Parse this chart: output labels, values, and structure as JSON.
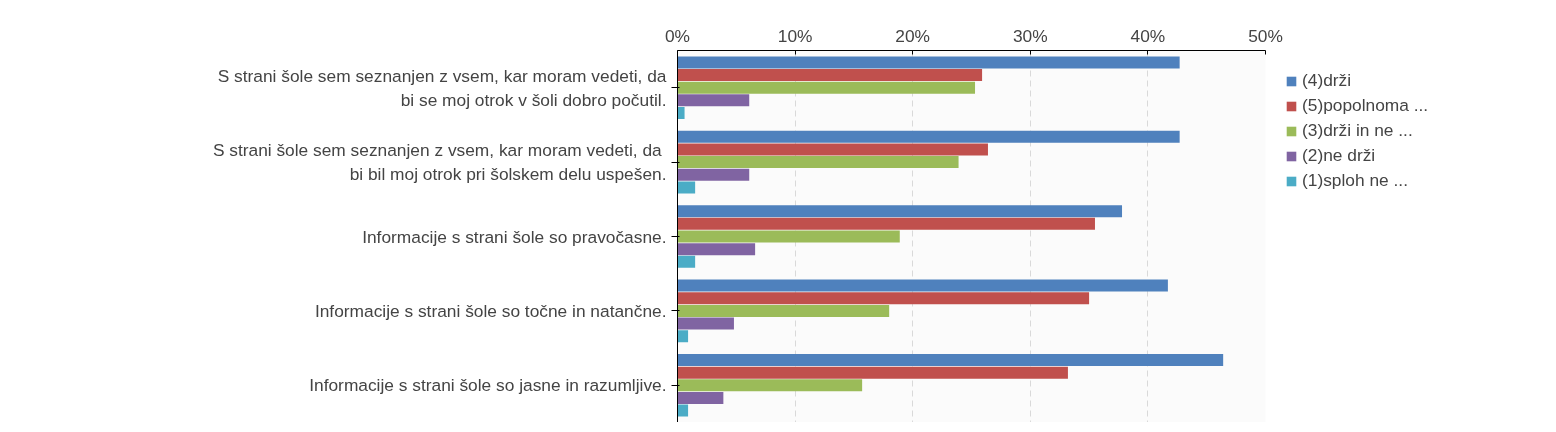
{
  "chart_data": {
    "type": "bar",
    "orientation": "horizontal",
    "categories": [
      "S strani šole sem seznanjen z vsem, kar moram vedeti, da bi se moj otrok v šoli dobro počutil.",
      "S strani šole sem seznanjen  z vsem, kar moram vedeti, da bi bil moj otrok pri šolskem delu uspešen.",
      "Informacije s strani šole so pravočasne.",
      "Informacije s strani šole so točne in natančne.",
      "Informacije s strani šole so jasne in razumljive."
    ],
    "series": [
      {
        "name": "(4)drži",
        "color": "#4f81bd",
        "values": [
          42.7,
          42.7,
          37.8,
          41.7,
          46.4
        ]
      },
      {
        "name": "(5)popolnoma ...",
        "color": "#c0504d",
        "values": [
          25.9,
          26.4,
          35.5,
          35.0,
          33.2
        ]
      },
      {
        "name": "(3)drži in ne ...",
        "color": "#9bbb59",
        "values": [
          25.3,
          23.9,
          18.9,
          18.0,
          15.7
        ]
      },
      {
        "name": "(2)ne drži",
        "color": "#8064a2",
        "values": [
          6.1,
          6.1,
          6.6,
          4.8,
          3.9
        ]
      },
      {
        "name": "(1)sploh ne ...",
        "color": "#4bacc6",
        "values": [
          0.6,
          1.5,
          1.5,
          0.9,
          0.9
        ]
      }
    ],
    "xlim": [
      0,
      50
    ],
    "xticks": [
      {
        "value": 0,
        "label": "0%"
      },
      {
        "value": 10,
        "label": "10%"
      },
      {
        "value": 20,
        "label": "20%"
      },
      {
        "value": 30,
        "label": "30%"
      },
      {
        "value": 40,
        "label": "40%"
      },
      {
        "value": 50,
        "label": "50%"
      }
    ],
    "grid": "x",
    "legend": "top right"
  }
}
